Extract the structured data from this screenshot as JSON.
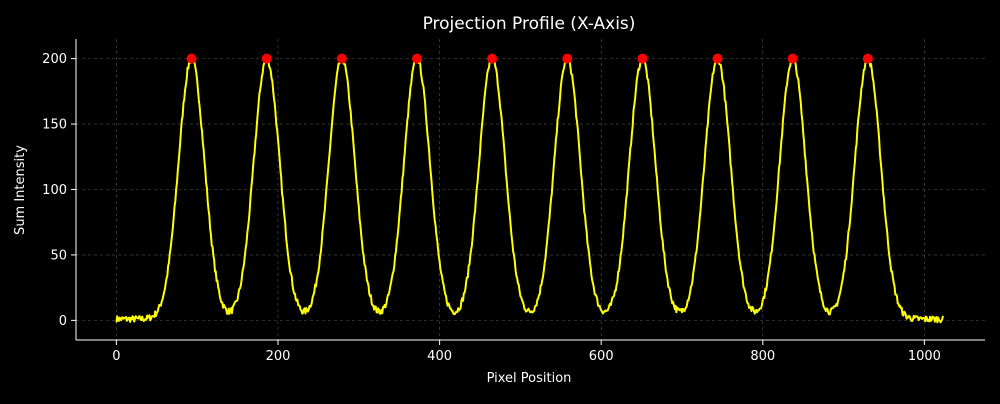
{
  "chart_data": {
    "type": "line",
    "title": "Projection Profile (X-Axis)",
    "xlabel": "Pixel Position",
    "ylabel": "Sum Intensity",
    "xlim": [
      -50,
      1075
    ],
    "ylim": [
      -15,
      215
    ],
    "xticks": [
      0,
      200,
      400,
      600,
      800,
      1000
    ],
    "yticks": [
      0,
      50,
      100,
      150,
      200
    ],
    "grid": true,
    "colors": {
      "background": "#000000",
      "line": "#ffff00",
      "peaks": "#ff0000",
      "grid": "#555555",
      "axis": "#ffffff"
    },
    "profile": {
      "x_start": 0,
      "x_end": 1023,
      "baseline": 1,
      "peak_value": 200,
      "peak_sigma": 16,
      "noise_amplitude": 2.5
    },
    "peaks": {
      "x": [
        93,
        186,
        279,
        372,
        465,
        558,
        651,
        744,
        837,
        930
      ],
      "y": [
        200,
        200,
        200,
        200,
        200,
        200,
        200,
        200,
        200,
        200
      ]
    }
  }
}
